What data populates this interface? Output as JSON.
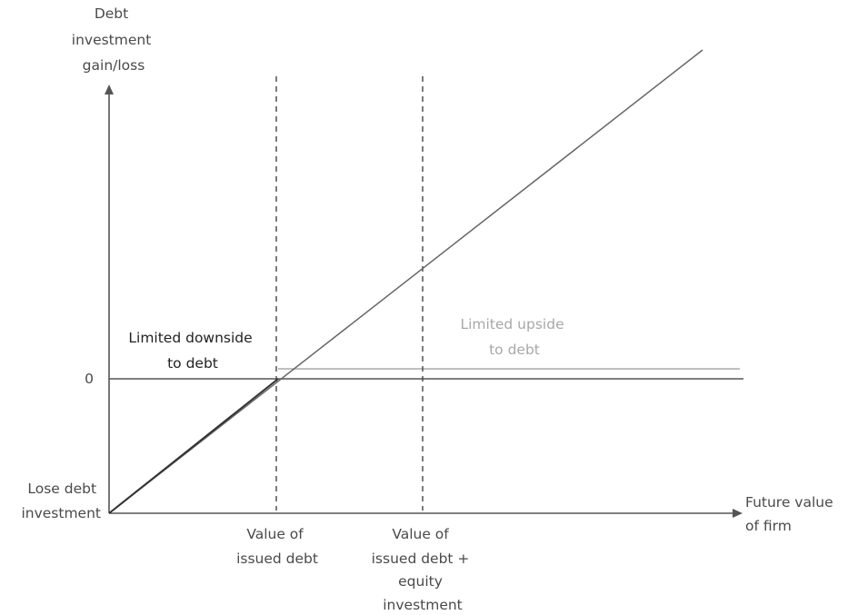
{
  "axes": {
    "y_label": [
      "Debt",
      "investment",
      "gain/loss"
    ],
    "x_label": [
      "Future value",
      "of firm"
    ],
    "zero_label": "0",
    "origin_label": [
      "Lose debt",
      "investment"
    ]
  },
  "markers": {
    "issued_debt": [
      "Value of",
      "issued debt"
    ],
    "issued_debt_plus_equity": [
      "Value of",
      "issued debt +",
      "equity",
      "investment"
    ]
  },
  "annotations": {
    "limited_downside": [
      "Limited downside",
      "to debt"
    ],
    "limited_upside": [
      "Limited upside",
      "to debt"
    ]
  },
  "colors": {
    "axis": "#555555",
    "line": "#666666",
    "dark_segment": "#333333",
    "cap_line": "#aaaaaa",
    "dashed": "#444444",
    "text": "#4a4a4a",
    "annotation_dark": "#222222",
    "annotation_light": "#a8a8a8"
  }
}
